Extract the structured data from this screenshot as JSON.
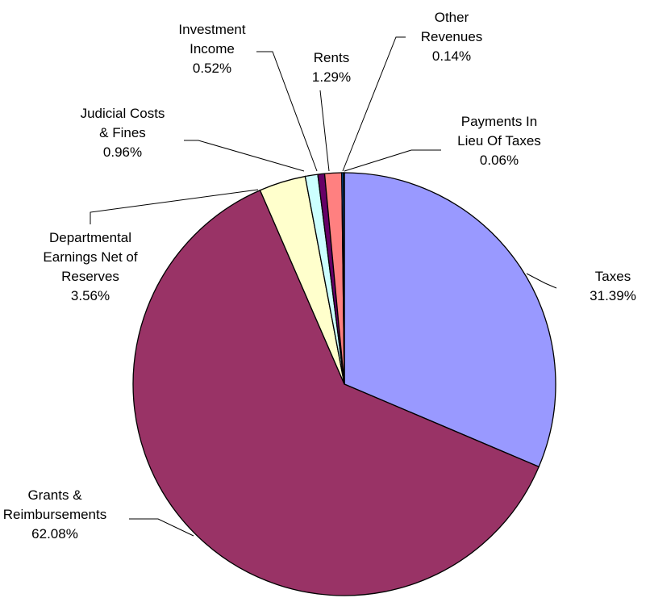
{
  "chart_data": {
    "type": "pie",
    "slices": [
      {
        "name": "Taxes",
        "value": 31.39,
        "percent_label": "31.39%",
        "color": "#9999ff"
      },
      {
        "name": "Grants & Reimbursements",
        "value": 62.08,
        "percent_label": "62.08%",
        "color": "#993366"
      },
      {
        "name": "Departmental Earnings Net of Reserves",
        "value": 3.56,
        "percent_label": "3.56%",
        "color": "#ffffcc"
      },
      {
        "name": "Judicial Costs & Fines",
        "value": 0.96,
        "percent_label": "0.96%",
        "color": "#ccffff"
      },
      {
        "name": "Investment Income",
        "value": 0.52,
        "percent_label": "0.52%",
        "color": "#660066"
      },
      {
        "name": "Rents",
        "value": 1.29,
        "percent_label": "1.29%",
        "color": "#ff8080"
      },
      {
        "name": "Other Revenues",
        "value": 0.14,
        "percent_label": "0.14%",
        "color": "#0066cc"
      },
      {
        "name": "Payments In Lieu Of Taxes",
        "value": 0.06,
        "percent_label": "0.06%",
        "color": "#ccccff"
      }
    ],
    "labels": [
      {
        "lines": [
          "Taxes",
          "31.39%"
        ]
      },
      {
        "lines": [
          "Grants &",
          "Reimbursements",
          "62.08%"
        ]
      },
      {
        "lines": [
          "Departmental",
          "Earnings Net of",
          "Reserves",
          "3.56%"
        ]
      },
      {
        "lines": [
          "Judicial Costs",
          "& Fines",
          "0.96%"
        ]
      },
      {
        "lines": [
          "Investment",
          "Income",
          "0.52%"
        ]
      },
      {
        "lines": [
          "Rents",
          "1.29%"
        ]
      },
      {
        "lines": [
          "Other",
          "Revenues",
          "0.14%"
        ]
      },
      {
        "lines": [
          "Payments In",
          "Lieu Of Taxes",
          "0.06%"
        ]
      }
    ],
    "start": "12 o'clock",
    "direction": "clockwise",
    "legend": "none"
  }
}
